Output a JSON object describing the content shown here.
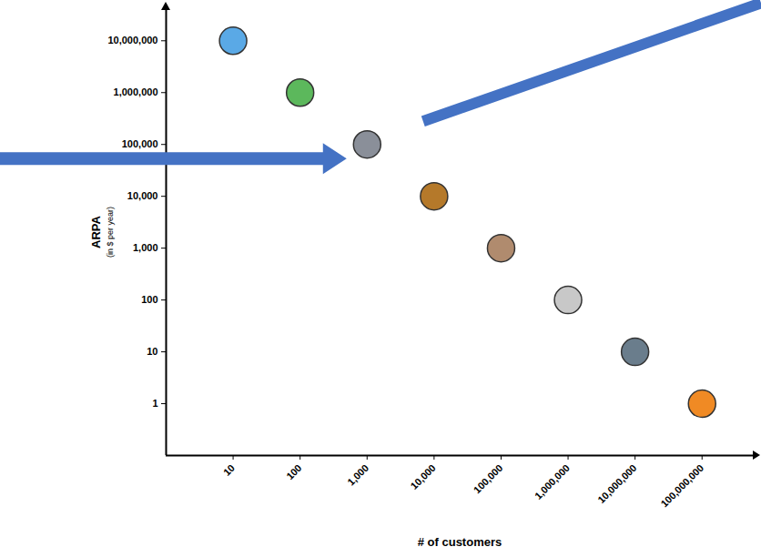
{
  "chart_data": {
    "type": "scatter",
    "xlabel": "# of customers",
    "ylabel": "ARPA",
    "ylabel_note": "(in $ per year)",
    "x": [
      10,
      100,
      1000,
      10000,
      100000,
      1000000,
      10000000,
      100000000
    ],
    "values": [
      10000000,
      1000000,
      100000,
      10000,
      1000,
      100,
      10,
      1
    ],
    "colors": [
      "#5aa9e6",
      "#5cb85c",
      "#8a8f99",
      "#b5792a",
      "#b08b6e",
      "#c8c8c8",
      "#6a7d8c",
      "#f08a24"
    ],
    "marker": "circle",
    "log": true,
    "grid": false,
    "xlim": [
      1,
      600000000
    ],
    "ylim": [
      0.1,
      40000000
    ],
    "xticks": [
      10,
      100,
      {
        "value": 1000,
        "label": "1,000"
      },
      {
        "value": 10000,
        "label": "10,000"
      },
      {
        "value": 100000,
        "label": "100,000"
      },
      {
        "value": 1000000,
        "label": "1,000,000"
      },
      {
        "value": 10000000,
        "label": "10,000,000"
      },
      {
        "value": 100000000,
        "label": "100,000,000"
      }
    ],
    "yticks": [
      1,
      10,
      100,
      {
        "value": 1000,
        "label": "1,000"
      },
      {
        "value": 10000,
        "label": "10,000"
      },
      {
        "value": 100000,
        "label": "100,000"
      },
      {
        "value": 1000000,
        "label": "1,000,000"
      },
      {
        "value": 10000000,
        "label": "10,000,000"
      }
    ]
  }
}
